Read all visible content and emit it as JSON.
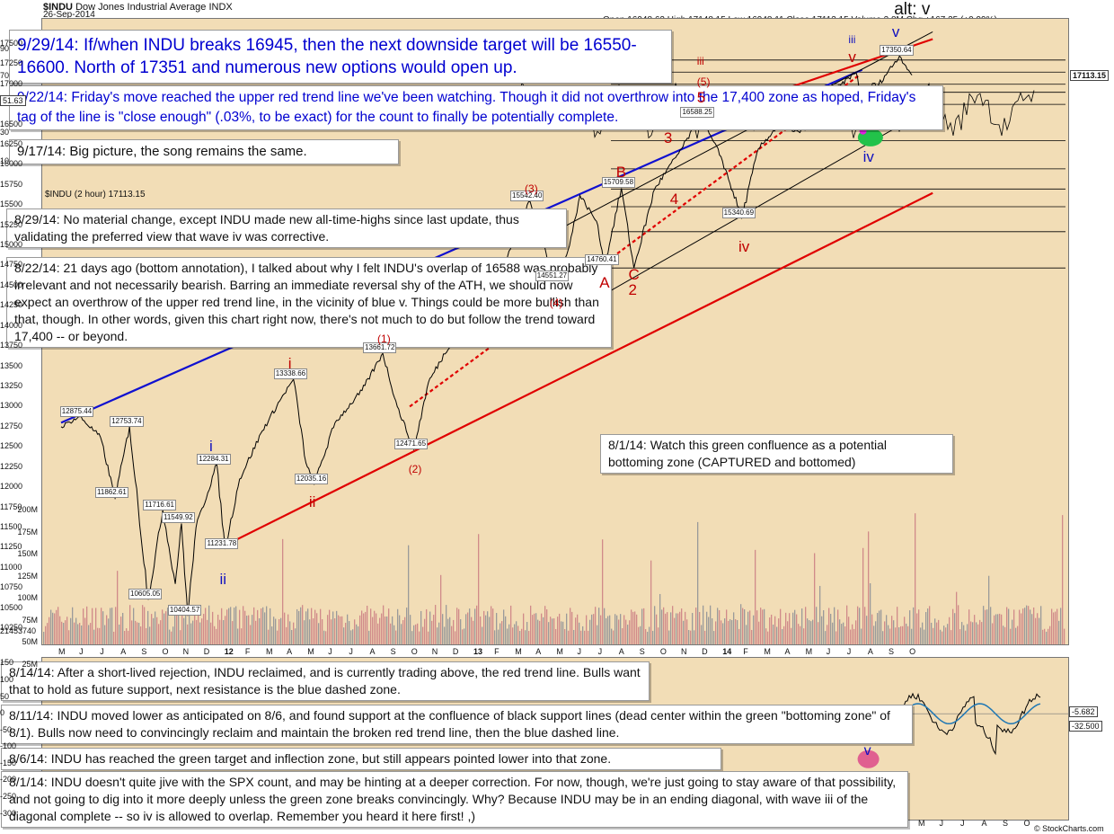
{
  "header": {
    "symbol": "$INDU",
    "name": "Dow Jones Industrial Average",
    "exchange": "INDX",
    "date": "26-Sep-2014",
    "ohlc": "Open 16948.62  High 17148.15  Low 16948.11  Close 17113.15  Volume 2.8M  Chg +167.35 (+0.99%)",
    "watermark": "© StockCharts.com",
    "inner_label": "$INDU (2 hour) 17113.15"
  },
  "colors": {
    "plot_bg": "#f2ddb6",
    "price": "#000000",
    "red_trend": "#e00000",
    "blue_trend": "#1010d0",
    "channel": "#000000",
    "green_zone": "#22c24a",
    "macd": "#000000",
    "signal": "#1f77b4",
    "note_text": "#111111",
    "note_blue": "#0000d0"
  },
  "annotations": {
    "a1": "9/29/14:  If/when INDU breaks 16945, then the next downside target will be 16550-16600.  North of 17351 and numerous new options would open up.",
    "a2": "9/22/14:  Friday's move reached the upper red trend line we've been watching.  Though it did not overthrow into the 17,400 zone as hoped, Friday's tag of the line is \"close enough\" (.03%, to be exact) for the count to finally be potentially complete.",
    "a3": "9/17/14:  Big picture, the song remains the same.",
    "a4": "8/29/14:  No material change, except INDU made new all-time-highs since last update, thus validating the preferred view that wave iv was corrective.",
    "a5": "8/22/14:  21 days ago (bottom annotation), I talked about why I felt INDU's overlap of 16588 was probably irrelevant and not necessarily bearish.  Barring an immediate reversal shy of the ATH, we should now expect an overthrow of the upper red trend line, in the vicinity of blue v.  Things could be more bullish than that, though.  In other words, given this chart right now, there's not much to do but follow the trend toward 17,400 -- or beyond.",
    "a6": "8/1/14: Watch this green confluence as a potential bottoming zone (CAPTURED and bottomed)",
    "a7": "8/14/14:  After a short-lived rejection, INDU reclaimed, and is currently trading above, the red trend line. Bulls want that to hold as future support, next resistance is the blue dashed zone.",
    "a8": "8/11/14:  INDU moved lower as anticipated on 8/6, and found support at the confluence of black support lines (dead center within the green \"bottoming zone\" of 8/1).  Bulls now need to convincingly reclaim and maintain the broken red trend line, then the blue dashed line.",
    "a9": "8/6/14:  INDU has reached the green target and inflection zone, but still appears pointed lower into that zone.",
    "a10": "8/1/14:  INDU doesn't quite jive with the SPX count, and may be hinting at a deeper correction.  For now, though, we're just going to stay aware of that possibility, and not going to dig into it more deeply unless the green zone breaks convincingly.  Why?  Because INDU may be in an ending diagonal, with wave iii of the diagonal complete -- so iv is allowed to overlap.  Remember you heard it here first!  ,)"
  },
  "chart_data": [
    {
      "type": "line",
      "title": "$INDU Dow Jones Industrial Average INDX",
      "x_labels": [
        "M",
        "J",
        "J",
        "A",
        "S",
        "O",
        "N",
        "D",
        "12",
        "F",
        "M",
        "A",
        "M",
        "J",
        "J",
        "A",
        "S",
        "O",
        "N",
        "D",
        "13",
        "F",
        "M",
        "A",
        "M",
        "J",
        "J",
        "A",
        "S",
        "O",
        "N",
        "D",
        "14",
        "F",
        "M",
        "A",
        "M",
        "J",
        "J",
        "A",
        "S",
        "O"
      ],
      "x_label_bold": [
        "12",
        "13",
        "14"
      ],
      "y_ticks": [
        10250,
        10500,
        10750,
        11000,
        11250,
        11500,
        11750,
        12000,
        12250,
        12500,
        12750,
        13000,
        13250,
        13500,
        13750,
        14000,
        14250,
        14500,
        14750,
        15000,
        15250,
        15500,
        15750,
        16000,
        16250,
        16500,
        16750,
        17000,
        17250,
        17500
      ],
      "ylim": [
        10150,
        17700
      ],
      "log_scale": false,
      "grid": false,
      "last_value": "17113.15",
      "right_extra_label": "21453740",
      "pivots": [
        [
          0,
          12750
        ],
        [
          0.9,
          12875.44
        ],
        [
          1.9,
          12620
        ],
        [
          2.6,
          11862.61
        ],
        [
          3.3,
          12753.74
        ],
        [
          4.2,
          10605.05
        ],
        [
          4.9,
          11716.61
        ],
        [
          5.5,
          10800
        ],
        [
          5.8,
          11549.92
        ],
        [
          6.1,
          10404.57
        ],
        [
          6.5,
          11500
        ],
        [
          7.5,
          12284.31
        ],
        [
          7.9,
          11231.78
        ],
        [
          8.6,
          12100
        ],
        [
          9.7,
          12700
        ],
        [
          10.6,
          13100
        ],
        [
          11.2,
          13338.66
        ],
        [
          11.8,
          12300
        ],
        [
          12.2,
          12035.16
        ],
        [
          13.2,
          12800
        ],
        [
          14.5,
          13200
        ],
        [
          15.5,
          13661.72
        ],
        [
          16.2,
          13000
        ],
        [
          17.0,
          12471.65
        ],
        [
          17.7,
          13300
        ],
        [
          19.0,
          13900
        ],
        [
          21.0,
          14600
        ],
        [
          22.6,
          15542.4
        ],
        [
          23.8,
          14551.27
        ],
        [
          24.5,
          15000
        ],
        [
          25.0,
          15620
        ],
        [
          25.8,
          15300
        ],
        [
          26.2,
          14760.41
        ],
        [
          27.0,
          15709.58
        ],
        [
          27.6,
          14719.43
        ],
        [
          28.6,
          15700
        ],
        [
          29.9,
          16200
        ],
        [
          30.8,
          16588.25
        ],
        [
          31.8,
          16100
        ],
        [
          32.8,
          15340.69
        ],
        [
          33.6,
          16200
        ],
        [
          34.6,
          16500
        ],
        [
          35.6,
          16400
        ],
        [
          36.8,
          16800
        ],
        [
          37.6,
          17000
        ],
        [
          38.3,
          17150
        ],
        [
          38.9,
          16450
        ],
        [
          39.4,
          17000
        ],
        [
          40.4,
          17350.64
        ],
        [
          41.0,
          17113.15
        ]
      ],
      "price_labels": [
        {
          "text": "12875.44",
          "x": 0.9,
          "y": 12875.44
        },
        {
          "text": "12753.74",
          "x": 3.3,
          "y": 12753.74
        },
        {
          "text": "11862.61",
          "x": 2.6,
          "y": 11862.61
        },
        {
          "text": "11716.61",
          "x": 4.9,
          "y": 11716.61
        },
        {
          "text": "11549.92",
          "x": 5.8,
          "y": 11549.92
        },
        {
          "text": "10605.05",
          "x": 4.2,
          "y": 10605.05
        },
        {
          "text": "10404.57",
          "x": 6.1,
          "y": 10404.57
        },
        {
          "text": "12284.31",
          "x": 7.5,
          "y": 12284.31
        },
        {
          "text": "11231.78",
          "x": 7.9,
          "y": 11231.78
        },
        {
          "text": "13338.66",
          "x": 11.2,
          "y": 13338.66
        },
        {
          "text": "12035.16",
          "x": 12.2,
          "y": 12035.16
        },
        {
          "text": "13661.72",
          "x": 15.5,
          "y": 13661.72
        },
        {
          "text": "12471.65",
          "x": 17.0,
          "y": 12471.65
        },
        {
          "text": "15542.40",
          "x": 22.6,
          "y": 15542.4
        },
        {
          "text": "14551.27",
          "x": 23.8,
          "y": 14551.27
        },
        {
          "text": "14760.41",
          "x": 26.2,
          "y": 14760.41
        },
        {
          "text": "15709.58",
          "x": 27.0,
          "y": 15709.58
        },
        {
          "text": "16588.25",
          "x": 30.8,
          "y": 16588.25
        },
        {
          "text": "15340.69",
          "x": 32.8,
          "y": 15340.69
        },
        {
          "text": "17350.64",
          "x": 40.4,
          "y": 17350.64
        }
      ],
      "wave_labels": [
        {
          "text": "i",
          "color": "blue",
          "x": 7.4,
          "y": 12420
        },
        {
          "text": "ii",
          "color": "blue",
          "x": 7.9,
          "y": 10780
        },
        {
          "text": "i",
          "color": "red",
          "x": 11.2,
          "y": 13450
        },
        {
          "text": "ii",
          "color": "red",
          "x": 12.2,
          "y": 11730
        },
        {
          "text": "(1)",
          "color": "red",
          "x": 15.5,
          "y": 13790
        },
        {
          "text": "(2)",
          "color": "red",
          "x": 17.0,
          "y": 12170
        },
        {
          "text": "(3)",
          "color": "red",
          "x": 22.6,
          "y": 15650
        },
        {
          "text": "(4)",
          "color": "red",
          "x": 23.8,
          "y": 14230
        },
        {
          "text": "A",
          "color": "red",
          "x": 26.2,
          "y": 14450
        },
        {
          "text": "B",
          "color": "red",
          "x": 27.0,
          "y": 15830
        },
        {
          "text": "C",
          "color": "red",
          "x": 27.6,
          "y": 14560
        },
        {
          "text": "2",
          "color": "red",
          "x": 27.6,
          "y": 14360
        },
        {
          "text": "3",
          "color": "red",
          "x": 29.3,
          "y": 16250
        },
        {
          "text": "4",
          "color": "red",
          "x": 29.6,
          "y": 15490
        },
        {
          "text": "iii",
          "color": "red",
          "x": 30.9,
          "y": 17230
        },
        {
          "text": "(5)",
          "color": "red",
          "x": 30.9,
          "y": 16970
        },
        {
          "text": "5",
          "color": "red",
          "x": 30.9,
          "y": 16750
        },
        {
          "text": "iv",
          "color": "red",
          "x": 32.9,
          "y": 14900
        },
        {
          "text": "v",
          "color": "red",
          "x": 38.2,
          "y": 17250
        },
        {
          "text": "iii",
          "color": "blue",
          "x": 38.2,
          "y": 17500
        },
        {
          "text": "iv",
          "color": "blue",
          "x": 38.9,
          "y": 16020
        },
        {
          "text": "v",
          "color": "blue",
          "x": 40.3,
          "y": 17560
        },
        {
          "text": "alt: v",
          "color": "black",
          "x": 40.4,
          "y": 17830
        }
      ],
      "trend_lines": [
        {
          "color": "red",
          "from": [
            7.6,
            11240
          ],
          "to": [
            42.0,
            15650
          ]
        },
        {
          "color": "red",
          "from": [
            30.5,
            16560
          ],
          "to": [
            42.0,
            17560
          ]
        },
        {
          "color": "red",
          "dashed": true,
          "from": [
            16.8,
            13000
          ],
          "to": [
            38.5,
            17120
          ]
        },
        {
          "color": "blue",
          "from": [
            0,
            12800
          ],
          "to": [
            38.6,
            17180
          ]
        },
        {
          "color": "black",
          "from": [
            24.0,
            15200
          ],
          "to": [
            42.0,
            17650
          ]
        },
        {
          "color": "black",
          "from": [
            23.5,
            14000
          ],
          "to": [
            42.0,
            16720
          ]
        }
      ],
      "horizontal_levels": [
        17300,
        17150,
        17000,
        16900,
        16750,
        16300,
        15950,
        15700,
        15480,
        15170,
        14720
      ],
      "green_zone": {
        "x": 39.0,
        "y": 16340
      },
      "magenta_marker": {
        "x": 38.9,
        "y": 16420
      }
    },
    {
      "type": "line",
      "title": "",
      "y_ticks": [
        90,
        70,
        51.63,
        30,
        10
      ],
      "last_value": "51.63",
      "ylim": [
        0,
        100
      ]
    },
    {
      "type": "bar",
      "title": "",
      "y_ticks": [
        "200M",
        "175M",
        "150M",
        "125M",
        "100M",
        "75M",
        "50M",
        "25M"
      ]
    },
    {
      "type": "line",
      "title": "",
      "y_ticks": [
        150,
        100,
        50,
        0,
        -50,
        -100,
        -150,
        -200,
        -250,
        -300
      ],
      "last_values": [
        "-5.682",
        "-32.500"
      ],
      "x_labels": [
        "M",
        "J",
        "J",
        "A",
        "S",
        "O"
      ],
      "ylim": [
        -320,
        170
      ],
      "wave_label": {
        "text": "v",
        "x": 38.9,
        "y": -120
      }
    }
  ]
}
